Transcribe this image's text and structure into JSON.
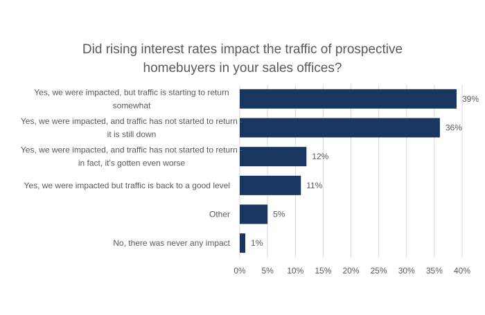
{
  "chart_data": {
    "type": "bar",
    "orientation": "horizontal",
    "title_lines": [
      "Did rising interest rates impact the traffic of prospective",
      "homebuyers in your sales offices?"
    ],
    "categories": [
      [
        "Yes, we were impacted, but traffic is starting to return",
        "somewhat"
      ],
      [
        "Yes, we were impacted, and traffic has not started to return -",
        "it is still down"
      ],
      [
        "Yes, we were impacted, and traffic has not started to return -",
        "in fact, it's gotten even worse"
      ],
      [
        "Yes, we were impacted but traffic is back to a good level"
      ],
      [
        "Other"
      ],
      [
        "No, there was never any impact"
      ]
    ],
    "values": [
      39,
      36,
      12,
      11,
      5,
      1
    ],
    "data_labels": [
      "39%",
      "36%",
      "12%",
      "11%",
      "5%",
      "1%"
    ],
    "xlim": [
      0,
      40
    ],
    "x_ticks": [
      0,
      5,
      10,
      15,
      20,
      25,
      30,
      35,
      40
    ],
    "x_tick_labels": [
      "0%",
      "5%",
      "10%",
      "15%",
      "20%",
      "25%",
      "30%",
      "35%",
      "40%"
    ],
    "grid": true,
    "bar_color": "#193660",
    "grid_color": "#d9d9d9"
  }
}
